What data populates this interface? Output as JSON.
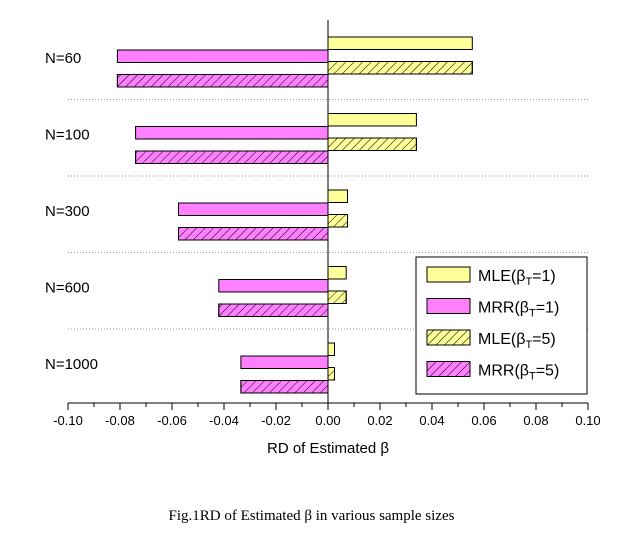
{
  "caption": "Fig.1RD of Estimated β in various sample sizes",
  "chart_data": {
    "type": "bar",
    "orientation": "horizontal",
    "categories": [
      "N=60",
      "N=100",
      "N=300",
      "N=600",
      "N=1000"
    ],
    "series": [
      {
        "name_prefix": "MLE(β",
        "name_sub": "T",
        "name_suffix": "=1)",
        "values": [
          0.0555,
          0.034,
          0.0075,
          0.007,
          0.0025
        ],
        "fill": "#ffff99",
        "hatch": false
      },
      {
        "name_prefix": "MRR(β",
        "name_sub": "T",
        "name_suffix": "=1)",
        "values": [
          -0.081,
          -0.074,
          -0.0575,
          -0.042,
          -0.0335
        ],
        "fill": "#ff80ff",
        "hatch": false
      },
      {
        "name_prefix": "MLE(β",
        "name_sub": "T",
        "name_suffix": "=5)",
        "values": [
          0.0555,
          0.034,
          0.0075,
          0.007,
          0.0025
        ],
        "fill": "#ffff99",
        "hatch": true
      },
      {
        "name_prefix": "MRR(β",
        "name_sub": "T",
        "name_suffix": "=5)",
        "values": [
          -0.081,
          -0.074,
          -0.0575,
          -0.042,
          -0.0335
        ],
        "fill": "#ff80ff",
        "hatch": true
      }
    ],
    "xlabel": "RD of Estimated β",
    "xlim": [
      -0.1,
      0.1
    ],
    "xticks": [
      -0.1,
      -0.08,
      -0.06,
      -0.04,
      -0.02,
      0.0,
      0.02,
      0.04,
      0.06,
      0.08,
      0.1
    ],
    "xtick_labels": [
      "-0.10",
      "-0.08",
      "-0.06",
      "-0.04",
      "-0.02",
      "0.00",
      "0.02",
      "0.04",
      "0.06",
      "0.08",
      "0.10"
    ],
    "grid": "dotted horizontal separators between groups",
    "legend_position": "bottom-right"
  }
}
